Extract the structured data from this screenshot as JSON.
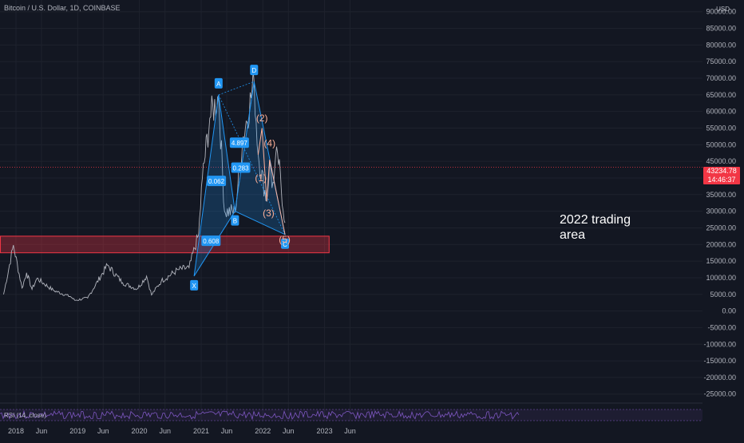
{
  "chart_data": {
    "type": "line",
    "title": "Bitcoin / U.S. Dollar, 1D, COINBASE",
    "currency": "USD",
    "y_axis": {
      "ticks": [
        90000,
        85000,
        80000,
        75000,
        70000,
        65000,
        60000,
        55000,
        50000,
        45000,
        40000,
        35000,
        30000,
        25000,
        20000,
        15000,
        10000,
        5000,
        0,
        -5000,
        -10000,
        -15000,
        -20000,
        -25000
      ],
      "tick_labels": [
        "90000.00",
        "85000.00",
        "80000.00",
        "75000.00",
        "70000.00",
        "65000.00",
        "60000.00",
        "55000.00",
        "50000.00",
        "45000.00",
        "40000.00",
        "35000.00",
        "30000.00",
        "25000.00",
        "20000.00",
        "15000.00",
        "10000.00",
        "5000.00",
        "0.00",
        "-5000.00",
        "-10000.00",
        "-15000.00",
        "-20000.00",
        "-25000.00"
      ],
      "ylim": [
        -27000,
        95000
      ]
    },
    "x_axis": {
      "ticks": [
        "2018-01-01",
        "2018-06-01",
        "2019-01-01",
        "2019-06-01",
        "2020-01-01",
        "2020-06-01",
        "2021-01-01",
        "2021-06-01",
        "2022-01-01",
        "2022-06-01",
        "2023-01-01",
        "2023-06-01"
      ],
      "tick_labels": [
        "2018",
        "Jun",
        "2019",
        "Jun",
        "2020",
        "Jun",
        "2021",
        "Jun",
        "2022",
        "Jun",
        "2023",
        "Jun"
      ]
    },
    "price_series": {
      "x": [
        "2017-10-20",
        "2017-12-17",
        "2018-02-06",
        "2018-03-05",
        "2018-04-06",
        "2018-05-05",
        "2018-08-10",
        "2018-11-20",
        "2018-12-15",
        "2019-03-01",
        "2019-06-26",
        "2019-09-24",
        "2019-12-18",
        "2020-02-13",
        "2020-03-13",
        "2020-05-10",
        "2020-08-17",
        "2020-10-21",
        "2020-12-17",
        "2021-01-08",
        "2021-02-21",
        "2021-04-14",
        "2021-05-19",
        "2021-07-20",
        "2021-09-07",
        "2021-11-10",
        "2021-12-04",
        "2022-01-24",
        "2022-02-10",
        "2022-02-24",
        "2022-03-29",
        "2022-05-12"
      ],
      "y": [
        5000,
        19800,
        6900,
        11500,
        6500,
        9800,
        6200,
        4300,
        3200,
        3900,
        13800,
        8500,
        6600,
        10500,
        4800,
        9000,
        12400,
        13000,
        23000,
        40000,
        58000,
        64800,
        30000,
        29800,
        52500,
        69000,
        47000,
        33000,
        45000,
        37000,
        47500,
        26500
      ]
    },
    "current_price": {
      "value": 43234.78,
      "label": "43234.78",
      "countdown": "14:46:37"
    },
    "support_zone": {
      "low": 17500,
      "high": 22500,
      "from": "2017-10-01",
      "to": "2023-01-28"
    },
    "pattern_points": {
      "labels": [
        "X",
        "A",
        "B",
        "C",
        "D"
      ],
      "x": [
        "2020-11-20",
        "2021-04-14",
        "2021-07-20",
        "2022-05-12",
        "2021-11-10"
      ],
      "y": [
        10500,
        65000,
        30000,
        23000,
        69000
      ]
    },
    "ratios": [
      {
        "label": "0.608",
        "x": "2021-02-28",
        "y": 21000
      },
      {
        "label": "0.062",
        "x": "2021-04-01",
        "y": 39000
      },
      {
        "label": "4.897",
        "x": "2021-08-15",
        "y": 50500
      },
      {
        "label": "0.283",
        "x": "2021-08-23",
        "y": 43000
      }
    ],
    "waves": [
      {
        "label": "(1)",
        "x": "2021-12-20",
        "y": 39000
      },
      {
        "label": "(2)",
        "x": "2021-12-27",
        "y": 57000
      },
      {
        "label": "(3)",
        "x": "2022-02-04",
        "y": 28500
      },
      {
        "label": "(4)",
        "x": "2022-02-10",
        "y": 49500
      },
      {
        "label": "(5)",
        "x": "2022-05-10",
        "y": 20500
      }
    ],
    "annotation": "2022 trading area",
    "indicator": {
      "label": "RSI (14, close)"
    },
    "colors": {
      "background": "#131722",
      "price": "#b2b5be",
      "pattern": "#2196f3",
      "zone": "#f23645",
      "waves": "#ffb199",
      "rsi": "#7e57c2"
    }
  }
}
